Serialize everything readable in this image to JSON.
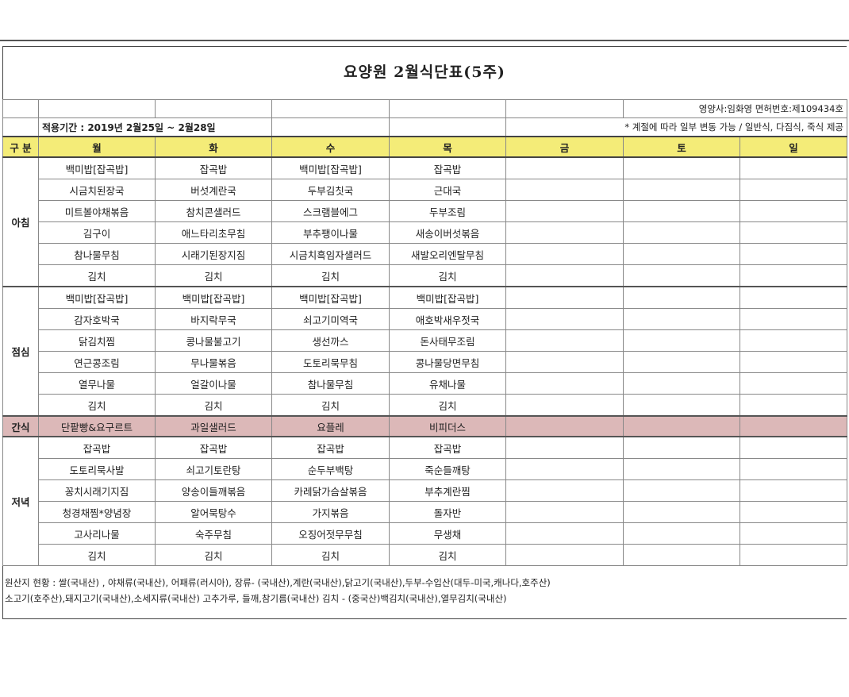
{
  "title": "요양원 2월식단표(5주)",
  "dietitian": "영양사:임화영  면허번호:제109434호",
  "notice": "* 계절에 따라 일부 변동 가능 / 일반식, 다짐식, 죽식 제공",
  "period": "적용기간 : 2019년 2월25일 ~ 2월28일",
  "header": {
    "category": "구 분",
    "days": [
      "월",
      "화",
      "수",
      "목",
      "금",
      "토",
      "일"
    ]
  },
  "meals": [
    {
      "name": "아침",
      "rows": [
        [
          "백미밥[잡곡밥]",
          "잡곡밥",
          "백미밥[잡곡밥]",
          "잡곡밥"
        ],
        [
          "시금치된장국",
          "버섯계란국",
          "두부김칫국",
          "근대국"
        ],
        [
          "미트볼야채볶음",
          "참치콘샐러드",
          "스크램블에그",
          "두부조림"
        ],
        [
          "김구이",
          "애느타리초무침",
          "부추팽이나물",
          "새송이버섯볶음"
        ],
        [
          "참나물무침",
          "시래기된장지짐",
          "시금치흑임자샐러드",
          "새발오리엔탈무침"
        ],
        [
          "김치",
          "김치",
          "김치",
          "김치"
        ]
      ]
    },
    {
      "name": "점심",
      "rows": [
        [
          "백미밥[잡곡밥]",
          "백미밥[잡곡밥]",
          "백미밥[잡곡밥]",
          "백미밥[잡곡밥]"
        ],
        [
          "감자호박국",
          "바지락무국",
          "쇠고기미역국",
          "애호박새우젓국"
        ],
        [
          "닭김치찜",
          "콩나물불고기",
          "생선까스",
          "돈사태무조림"
        ],
        [
          "연근콩조림",
          "무나물볶음",
          "도토리묵무침",
          "콩나물당면무침"
        ],
        [
          "열무나물",
          "얼갈이나물",
          "참나물무침",
          "유채나물"
        ],
        [
          "김치",
          "김치",
          "김치",
          "김치"
        ]
      ]
    },
    {
      "name": "간식",
      "rows": [
        [
          "단팥빵&요구르트",
          "과일샐러드",
          "요플레",
          "비피더스"
        ]
      ]
    },
    {
      "name": "저녁",
      "rows": [
        [
          "잡곡밥",
          "잡곡밥",
          "잡곡밥",
          "잡곡밥"
        ],
        [
          "도토리묵사발",
          "쇠고기토란탕",
          "순두부백탕",
          "죽순들깨탕"
        ],
        [
          "꽁치시래기지짐",
          "양송이들깨볶음",
          "카레닭가슴살볶음",
          "부추계란찜"
        ],
        [
          "청경채찜*양념장",
          "알어묵탕수",
          "가지볶음",
          "돌자반"
        ],
        [
          "고사리나물",
          "숙주무침",
          "오징어젓무무침",
          "무생채"
        ],
        [
          "김치",
          "김치",
          "김치",
          "김치"
        ]
      ]
    }
  ],
  "origin": [
    "원산지 현황 : 쌀(국내산) , 야채류(국내산), 어패류(러시아),  장류- (국내산),계란(국내산),닭고기(국내산),두부-수입산(대두-미국,캐나다,호주산)",
    "소고기(호주산),돼지고기(국내산),소세지류(국내산) 고추가루, 들깨,참기름(국내산) 김치 - (중국산)백김치(국내산),열무김치(국내산)"
  ],
  "colors": {
    "day_header": "#f4ec78",
    "snack_row": "#dcb8b8"
  }
}
